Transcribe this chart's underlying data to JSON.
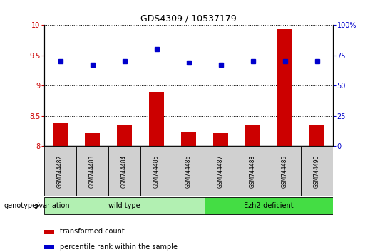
{
  "title": "GDS4309 / 10537179",
  "samples": [
    "GSM744482",
    "GSM744483",
    "GSM744484",
    "GSM744485",
    "GSM744486",
    "GSM744487",
    "GSM744488",
    "GSM744489",
    "GSM744490"
  ],
  "bar_values": [
    8.38,
    8.22,
    8.35,
    8.9,
    8.24,
    8.22,
    8.35,
    9.93,
    8.35
  ],
  "dot_values_right": [
    70,
    67,
    70,
    80,
    69,
    67,
    70,
    70,
    70
  ],
  "ylim_left": [
    8.0,
    10.0
  ],
  "ylim_right": [
    0,
    100
  ],
  "yticks_left": [
    8.0,
    8.5,
    9.0,
    9.5,
    10.0
  ],
  "yticks_right": [
    0,
    25,
    50,
    75,
    100
  ],
  "ytick_labels_left": [
    "8",
    "8.5",
    "9",
    "9.5",
    "10"
  ],
  "ytick_labels_right": [
    "0",
    "25",
    "50",
    "75",
    "100%"
  ],
  "bar_color": "#cc0000",
  "dot_color": "#0000cc",
  "wt_color": "#b2f0b2",
  "ezh_color": "#44dd44",
  "wt_label": "wild type",
  "ezh_label": "Ezh2-deficient",
  "wt_count": 5,
  "ezh_count": 4,
  "group_label": "genotype/variation",
  "legend_bar_label": "transformed count",
  "legend_dot_label": "percentile rank within the sample",
  "title_fontsize": 9,
  "tick_fontsize": 7,
  "label_fontsize": 7,
  "sample_fontsize": 5.5
}
